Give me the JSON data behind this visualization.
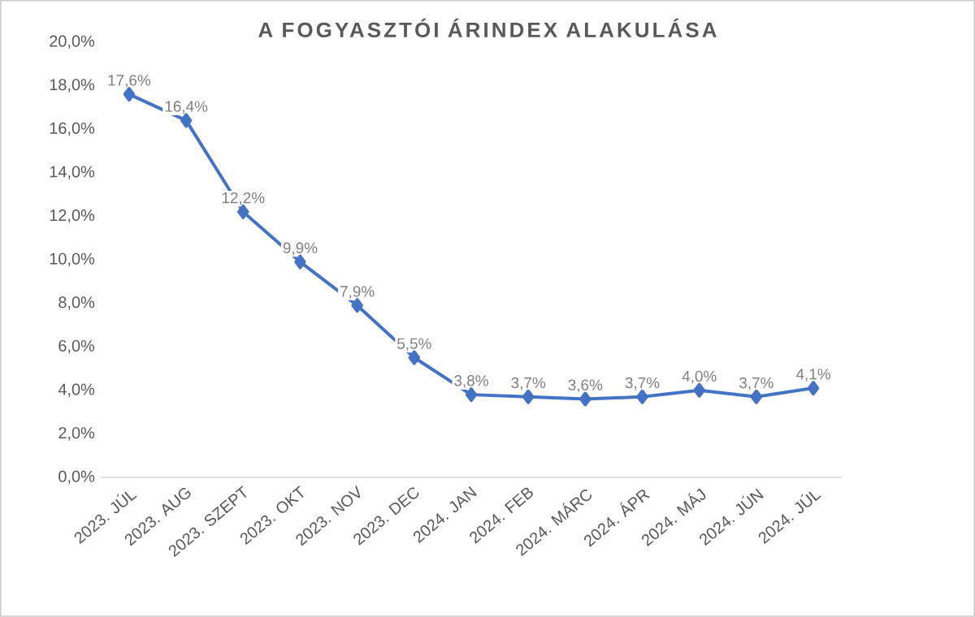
{
  "chart_data": {
    "type": "line",
    "title": "A FOGYASZTÓI ÁRINDEX ALAKULÁSA",
    "categories": [
      "2023. JÚL",
      "2023. AUG",
      "2023. SZEPT",
      "2023. OKT",
      "2023. NOV",
      "2023. DEC",
      "2024. JAN",
      "2024. FEB",
      "2024. MÁRC",
      "2024. ÁPR",
      "2024. MÁJ",
      "2024. JÚN",
      "2024. JÚL"
    ],
    "values": [
      17.6,
      16.4,
      12.2,
      9.9,
      7.9,
      5.5,
      3.8,
      3.7,
      3.6,
      3.7,
      4.0,
      3.7,
      4.1
    ],
    "value_labels": [
      "17,6%",
      "16,4%",
      "12,2%",
      "9,9%",
      "7,9%",
      "5,5%",
      "3,8%",
      "3,7%",
      "3,6%",
      "3,7%",
      "4,0%",
      "3,7%",
      "4,1%"
    ],
    "color": "#4472c4",
    "marker": "diamond",
    "line_style": "solid",
    "ylim": [
      0,
      20
    ],
    "yticks": [
      {
        "value": 0,
        "label": "0,0%"
      },
      {
        "value": 2,
        "label": "2,0%"
      },
      {
        "value": 4,
        "label": "4,0%"
      },
      {
        "value": 6,
        "label": "6,0%"
      },
      {
        "value": 8,
        "label": "8,0%"
      },
      {
        "value": 10,
        "label": "10,0%"
      },
      {
        "value": 12,
        "label": "12,0%"
      },
      {
        "value": 14,
        "label": "14,0%"
      },
      {
        "value": 16,
        "label": "16,0%"
      },
      {
        "value": 18,
        "label": "18,0%"
      },
      {
        "value": 20,
        "label": "20,0%"
      }
    ]
  }
}
